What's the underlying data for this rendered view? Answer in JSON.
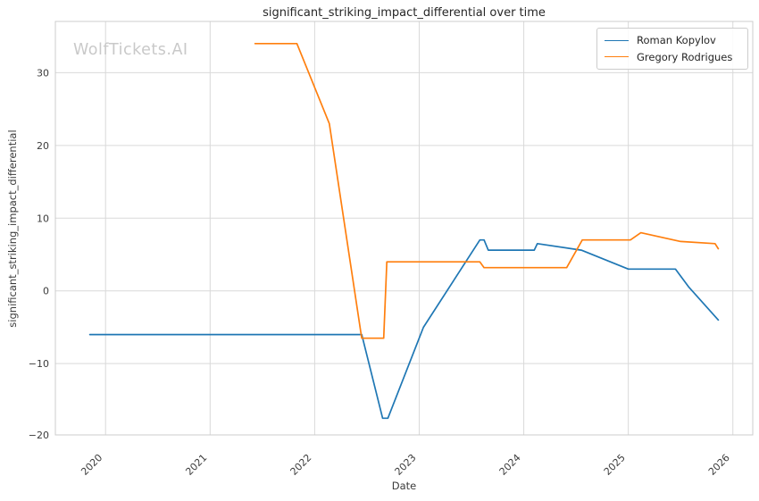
{
  "title": "significant_striking_impact_differential over time",
  "watermark": "WolfTickets.AI",
  "xlabel": "Date",
  "ylabel": "significant_striking_impact_differential",
  "legend": {
    "items": [
      {
        "label": "Roman Kopylov",
        "color": "#1f77b4"
      },
      {
        "label": "Gregory Rodrigues",
        "color": "#ff7f0e"
      }
    ]
  },
  "colors": {
    "grid": "#d9d9d9",
    "spine": "#cccccc",
    "tick_text": "#3b3b3b",
    "title_text": "#262626",
    "background": "#ffffff"
  },
  "chart_data": {
    "type": "line",
    "title": "significant_striking_impact_differential over time",
    "xlabel": "Date",
    "ylabel": "significant_striking_impact_differential",
    "xlim": [
      2019.52,
      2026.19
    ],
    "ylim": [
      -19.8,
      37.05
    ],
    "x_ticks": [
      2020,
      2021,
      2022,
      2023,
      2024,
      2025,
      2026
    ],
    "y_ticks": [
      -20,
      -10,
      0,
      10,
      20,
      30
    ],
    "grid": true,
    "legend_position": "upper right",
    "series": [
      {
        "name": "Roman Kopylov",
        "color": "#1f77b4",
        "x": [
          2019.85,
          2022.45,
          2022.65,
          2022.7,
          2023.04,
          2023.58,
          2023.62,
          2023.66,
          2024.1,
          2024.13,
          2024.55,
          2025.0,
          2025.45,
          2025.58,
          2025.86
        ],
        "y": [
          -6,
          -6,
          -17.5,
          -17.5,
          -5,
          7,
          7,
          5.6,
          5.6,
          6.5,
          5.6,
          3,
          3,
          0.5,
          -4
        ]
      },
      {
        "name": "Gregory Rodrigues",
        "color": "#ff7f0e",
        "x": [
          2021.43,
          2021.83,
          2022.14,
          2022.45,
          2022.66,
          2022.69,
          2023.58,
          2023.62,
          2024.41,
          2024.56,
          2025.02,
          2025.12,
          2025.5,
          2025.83,
          2025.86
        ],
        "y": [
          34,
          34,
          23,
          -6.5,
          -6.5,
          4,
          4,
          3.2,
          3.2,
          7,
          7,
          8,
          6.8,
          6.5,
          5.8
        ]
      }
    ]
  }
}
